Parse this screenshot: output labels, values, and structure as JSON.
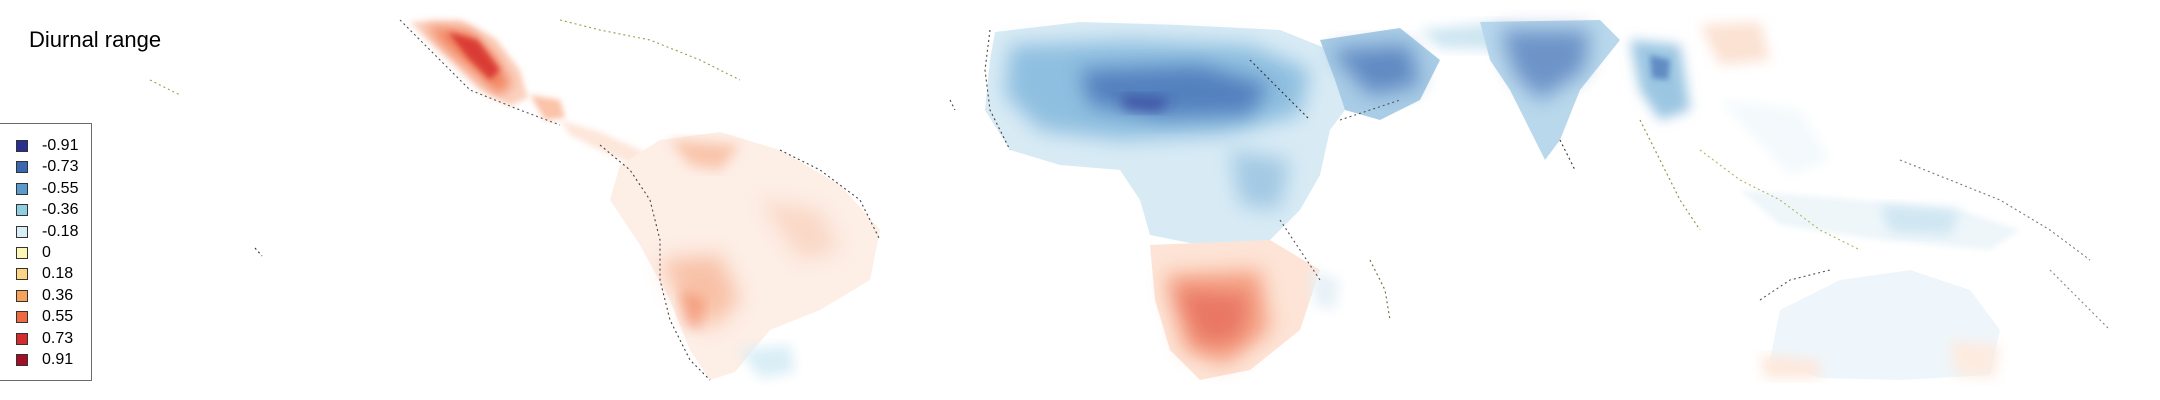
{
  "map": {
    "title": "Diurnal range"
  },
  "legend": {
    "items": [
      {
        "label": "-0.91",
        "color": "#2a2f8f"
      },
      {
        "label": "-0.73",
        "color": "#3b66b0"
      },
      {
        "label": "-0.55",
        "color": "#5a9bcf"
      },
      {
        "label": "-0.36",
        "color": "#8fcde0"
      },
      {
        "label": "-0.18",
        "color": "#d6eef4"
      },
      {
        "label": "0",
        "color": "#fdf7b6"
      },
      {
        "label": "0.18",
        "color": "#fdd385"
      },
      {
        "label": "0.36",
        "color": "#f7a25a"
      },
      {
        "label": "0.55",
        "color": "#ee6a41"
      },
      {
        "label": "0.73",
        "color": "#d42c2c"
      },
      {
        "label": "0.91",
        "color": "#a20e26"
      }
    ]
  }
}
